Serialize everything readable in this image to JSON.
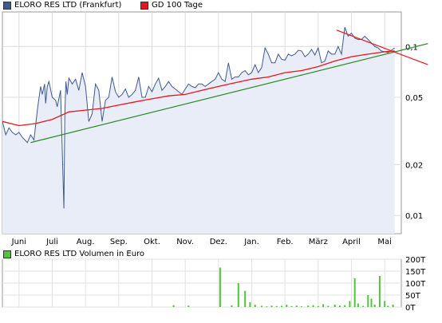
{
  "legend_main": [
    {
      "label": "ELORO RES LTD (Frankfurt)",
      "color": "#405a8a"
    },
    {
      "label": "GD 100 Tage",
      "color": "#e8141e"
    }
  ],
  "legend_volume": {
    "label": "ELORO RES LTD Volumen in Euro",
    "color": "#52c43a"
  },
  "chart_data": [
    {
      "type": "line",
      "log_scale": true,
      "grid": true,
      "x_tick_labels": [
        "Juni",
        "Juli",
        "Aug.",
        "Sep.",
        "Okt.",
        "Nov.",
        "Dez.",
        "Jan.",
        "Feb.",
        "März",
        "April",
        "Mai"
      ],
      "y_ticks": [
        0.01,
        0.02,
        0.05,
        0.1
      ],
      "y_tick_labels": [
        "0,01",
        "0,02",
        "0,05",
        "0,1"
      ],
      "ylim": [
        0.0078,
        0.16
      ],
      "x_months": [
        0,
        12
      ],
      "series": [
        {
          "name": "ELORO RES LTD (Frankfurt)",
          "color": "#405a8a",
          "fill": "#e9edf8",
          "x": [
            0,
            0.1,
            0.2,
            0.3,
            0.4,
            0.5,
            0.6,
            0.75,
            0.85,
            0.95,
            1.05,
            1.15,
            1.2,
            1.27,
            1.3,
            1.35,
            1.4,
            1.5,
            1.6,
            1.65,
            1.75,
            1.85,
            1.88,
            1.91,
            1.95,
            2.0,
            2.1,
            2.2,
            2.3,
            2.4,
            2.5,
            2.6,
            2.7,
            2.8,
            2.9,
            3.0,
            3.1,
            3.2,
            3.3,
            3.4,
            3.5,
            3.6,
            3.7,
            3.8,
            3.9,
            4.0,
            4.1,
            4.2,
            4.3,
            4.4,
            4.5,
            4.6,
            4.7,
            4.8,
            4.9,
            5.0,
            5.1,
            5.2,
            5.3,
            5.4,
            5.5,
            5.6,
            5.7,
            5.8,
            5.9,
            6.0,
            6.1,
            6.2,
            6.3,
            6.4,
            6.5,
            6.6,
            6.7,
            6.8,
            6.9,
            7.0,
            7.1,
            7.2,
            7.3,
            7.4,
            7.5,
            7.6,
            7.7,
            7.8,
            7.9,
            8.0,
            8.1,
            8.2,
            8.3,
            8.4,
            8.5,
            8.6,
            8.7,
            8.8,
            8.9,
            9.0,
            9.1,
            9.2,
            9.3,
            9.4,
            9.5,
            9.6,
            9.7,
            9.8,
            9.9,
            10.0,
            10.1,
            10.2,
            10.3,
            10.4,
            10.5,
            10.6,
            10.7,
            10.8,
            10.9,
            11.0,
            11.1,
            11.2,
            11.3,
            11.4,
            11.5,
            11.6,
            11.7,
            11.8
          ],
          "y": [
            0.036,
            0.03,
            0.033,
            0.031,
            0.03,
            0.031,
            0.029,
            0.027,
            0.03,
            0.028,
            0.042,
            0.058,
            0.052,
            0.06,
            0.046,
            0.058,
            0.062,
            0.05,
            0.048,
            0.044,
            0.055,
            0.011,
            0.04,
            0.062,
            0.052,
            0.065,
            0.06,
            0.064,
            0.055,
            0.07,
            0.058,
            0.036,
            0.04,
            0.06,
            0.055,
            0.036,
            0.048,
            0.05,
            0.066,
            0.054,
            0.05,
            0.052,
            0.056,
            0.05,
            0.052,
            0.055,
            0.066,
            0.05,
            0.05,
            0.058,
            0.054,
            0.06,
            0.065,
            0.055,
            0.058,
            0.062,
            0.058,
            0.056,
            0.054,
            0.052,
            0.056,
            0.06,
            0.058,
            0.057,
            0.06,
            0.06,
            0.058,
            0.06,
            0.062,
            0.064,
            0.07,
            0.064,
            0.062,
            0.08,
            0.064,
            0.066,
            0.066,
            0.07,
            0.072,
            0.068,
            0.07,
            0.078,
            0.07,
            0.075,
            0.098,
            0.09,
            0.08,
            0.08,
            0.09,
            0.084,
            0.083,
            0.09,
            0.088,
            0.09,
            0.095,
            0.094,
            0.087,
            0.09,
            0.096,
            0.089,
            0.098,
            0.08,
            0.082,
            0.094,
            0.09,
            0.09,
            0.1,
            0.09,
            0.13,
            0.115,
            0.12,
            0.112,
            0.11,
            0.11,
            0.115,
            0.11,
            0.105,
            0.1,
            0.098,
            0.094,
            0.093,
            0.092,
            0.095,
            0.098
          ]
        },
        {
          "name": "GD 100 Tage",
          "color": "#e8141e",
          "x": [
            0,
            0.5,
            1.0,
            1.5,
            2.0,
            2.5,
            3.0,
            3.5,
            4.0,
            4.5,
            5.0,
            5.5,
            6.0,
            6.5,
            7.0,
            7.5,
            8.0,
            8.5,
            9.0,
            9.5,
            10.0,
            10.5,
            11.0,
            11.5,
            11.8
          ],
          "y": [
            0.036,
            0.034,
            0.035,
            0.037,
            0.041,
            0.042,
            0.043,
            0.045,
            0.047,
            0.049,
            0.051,
            0.052,
            0.055,
            0.058,
            0.061,
            0.064,
            0.066,
            0.07,
            0.072,
            0.076,
            0.082,
            0.087,
            0.09,
            0.093,
            0.094
          ]
        }
      ],
      "trendlines": [
        {
          "color": "#2a8a2a",
          "x": [
            0.85,
            12.8
          ],
          "y": [
            0.027,
            0.104
          ]
        },
        {
          "color": "#e8141e",
          "x": [
            10.05,
            12.8
          ],
          "y": [
            0.125,
            0.078
          ]
        }
      ]
    },
    {
      "type": "bar",
      "title": "ELORO RES LTD Volumen in Euro",
      "y_ticks": [
        0,
        50000,
        100000,
        150000,
        200000
      ],
      "y_tick_labels": [
        "0T",
        "50T",
        "100T",
        "150T",
        "200T"
      ],
      "ylim": [
        0,
        200000
      ],
      "x_months": [
        0,
        12
      ],
      "color": "#52c43a",
      "x": [
        5.15,
        5.6,
        6.55,
        6.9,
        7.1,
        7.3,
        7.45,
        7.6,
        7.8,
        7.95,
        8.1,
        8.25,
        8.4,
        8.55,
        8.7,
        8.85,
        9.0,
        9.2,
        9.35,
        9.5,
        9.65,
        9.8,
        10.0,
        10.15,
        10.3,
        10.45,
        10.6,
        10.7,
        10.85,
        11.0,
        11.1,
        11.2,
        11.35,
        11.5,
        11.6,
        11.75
      ],
      "values": [
        8000,
        6000,
        165000,
        7000,
        100000,
        68000,
        20000,
        10000,
        5000,
        3000,
        6000,
        4000,
        5000,
        10000,
        4000,
        6000,
        3000,
        6000,
        8000,
        4000,
        12000,
        5000,
        10000,
        6000,
        8000,
        25000,
        120000,
        15000,
        5000,
        50000,
        35000,
        10000,
        130000,
        25000,
        5000,
        10000
      ]
    }
  ]
}
